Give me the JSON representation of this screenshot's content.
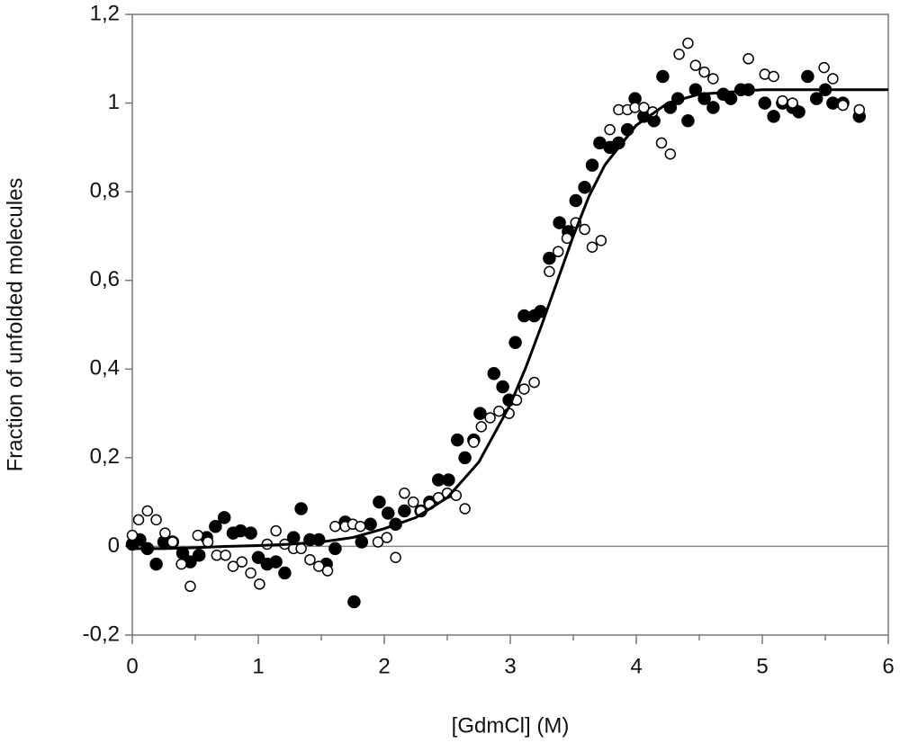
{
  "chart_data": {
    "type": "scatter",
    "xlabel": "[GdmCl] (M)",
    "ylabel": "Fraction of unfolded molecules",
    "xlim": [
      0,
      6
    ],
    "xticks": [
      0,
      1,
      2,
      3,
      4,
      5,
      6
    ],
    "xminorticks": [
      0.5,
      1.5,
      2.5,
      3.5,
      4.5,
      5.5
    ],
    "ylim": [
      -0.2,
      1.2
    ],
    "yticks": [
      {
        "value": -0.2,
        "label": "-0,2"
      },
      0,
      {
        "value": 0.2,
        "label": "0,2"
      },
      {
        "value": 0.4,
        "label": "0,4"
      },
      {
        "value": 0.6,
        "label": "0,6"
      },
      {
        "value": 0.8,
        "label": "0,8"
      },
      1,
      {
        "value": 1.2,
        "label": "1,2"
      }
    ],
    "hline": 0,
    "series": [
      {
        "marker": "filled",
        "color": "#000000",
        "x": [
          3.04,
          3.11,
          3.19,
          3.24,
          3.31,
          3.39,
          3.46,
          3.52,
          3.59,
          3.65,
          3.71,
          3.79,
          3.86,
          3.93,
          3.99,
          4.06,
          4.14,
          4.21,
          4.27,
          4.33,
          4.41,
          4.47,
          4.54,
          4.61,
          4.69,
          4.75,
          4.83,
          4.89,
          5.02,
          5.09,
          5.16,
          5.24,
          5.29,
          5.36,
          5.43,
          5.5,
          5.56,
          5.64,
          5.77,
          2.87,
          2.94,
          2.99,
          2.76,
          2.71,
          2.64,
          2.58,
          2.51,
          2.43,
          2.36,
          2.29,
          2.16,
          2.09,
          2.03,
          1.96,
          1.89,
          1.82,
          1.76,
          1.69,
          1.61,
          1.54,
          1.48,
          1.41,
          1.34,
          1.28,
          1.21,
          1.14,
          1.07,
          1.0,
          0.94,
          0.86,
          0.8,
          0.73,
          0.66,
          0.59,
          0.53,
          0.46,
          0.4,
          0.32,
          0.25,
          0.19,
          0.12,
          0.06,
          0.0
        ],
        "values": [
          0.46,
          0.52,
          0.52,
          0.53,
          0.65,
          0.73,
          0.71,
          0.78,
          0.81,
          0.86,
          0.91,
          0.9,
          0.91,
          0.94,
          1.01,
          0.97,
          0.96,
          1.06,
          0.99,
          1.01,
          0.96,
          1.03,
          1.01,
          0.99,
          1.02,
          1.01,
          1.03,
          1.03,
          1.0,
          0.97,
          1.0,
          0.99,
          0.98,
          1.06,
          1.01,
          1.03,
          1.0,
          1.0,
          0.97,
          0.39,
          0.36,
          0.33,
          0.3,
          0.24,
          0.2,
          0.24,
          0.15,
          0.15,
          0.1,
          0.08,
          0.08,
          0.05,
          0.075,
          0.1,
          0.05,
          0.01,
          -0.125,
          0.055,
          -0.005,
          -0.04,
          0.015,
          0.015,
          0.085,
          0.02,
          -0.06,
          -0.035,
          -0.04,
          -0.025,
          0.03,
          0.035,
          0.03,
          0.065,
          0.045,
          0.02,
          -0.02,
          -0.035,
          -0.015,
          0.01,
          0.01,
          -0.04,
          -0.005,
          0.015,
          0.005
        ]
      },
      {
        "marker": "open",
        "color": "#000000",
        "x": [
          0,
          0.05,
          0.12,
          0.19,
          0.26,
          0.32,
          0.39,
          0.46,
          0.52,
          0.6,
          0.67,
          0.74,
          0.8,
          0.87,
          0.94,
          1.01,
          1.07,
          1.14,
          1.21,
          1.28,
          1.34,
          1.41,
          1.48,
          1.55,
          1.61,
          1.69,
          1.75,
          1.81,
          1.95,
          2.02,
          2.09,
          2.16,
          2.23,
          2.29,
          2.36,
          2.43,
          2.5,
          2.57,
          2.64,
          2.71,
          2.77,
          2.84,
          2.91,
          2.99,
          3.05,
          3.11,
          3.19,
          3.31,
          3.38,
          3.45,
          3.52,
          3.59,
          3.65,
          3.72,
          3.79,
          3.86,
          3.93,
          3.99,
          4.06,
          4.13,
          4.2,
          4.27,
          4.34,
          4.41,
          4.47,
          4.54,
          4.61,
          4.89,
          5.02,
          5.09,
          5.16,
          5.24,
          5.49,
          5.56,
          5.64,
          5.77
        ],
        "values": [
          0.025,
          0.06,
          0.08,
          0.06,
          0.03,
          0.01,
          -0.04,
          -0.09,
          0.025,
          0.01,
          -0.02,
          -0.02,
          -0.045,
          -0.035,
          -0.06,
          -0.085,
          0.005,
          0.035,
          0.005,
          -0.005,
          -0.005,
          -0.03,
          -0.045,
          -0.055,
          0.045,
          0.045,
          0.05,
          0.045,
          0.01,
          0.02,
          -0.025,
          0.12,
          0.1,
          0.08,
          0.095,
          0.11,
          0.12,
          0.115,
          0.085,
          0.235,
          0.27,
          0.29,
          0.305,
          0.3,
          0.33,
          0.355,
          0.37,
          0.62,
          0.665,
          0.695,
          0.73,
          0.715,
          0.675,
          0.69,
          0.94,
          0.985,
          0.985,
          0.99,
          0.99,
          0.98,
          0.91,
          0.885,
          1.11,
          1.135,
          1.085,
          1.07,
          1.055,
          1.1,
          1.065,
          1.06,
          1.005,
          1.0,
          1.08,
          1.055,
          0.995,
          0.985
        ]
      },
      {
        "type": "line",
        "color": "#000000",
        "x": [
          0,
          0.25,
          0.5,
          0.75,
          1,
          1.25,
          1.5,
          1.75,
          2,
          2.25,
          2.5,
          2.75,
          3,
          3.125,
          3.25,
          3.375,
          3.5,
          3.625,
          3.75,
          4,
          4.25,
          4.5,
          4.75,
          5,
          5.25,
          5.5,
          5.75,
          6
        ],
        "values": [
          -0.005,
          -0.005,
          -0.003,
          0,
          0.002,
          0.005,
          0.01,
          0.02,
          0.04,
          0.065,
          0.11,
          0.19,
          0.32,
          0.405,
          0.5,
          0.6,
          0.7,
          0.79,
          0.86,
          0.95,
          1.0,
          1.02,
          1.025,
          1.03,
          1.03,
          1.03,
          1.03,
          1.03
        ]
      }
    ]
  }
}
